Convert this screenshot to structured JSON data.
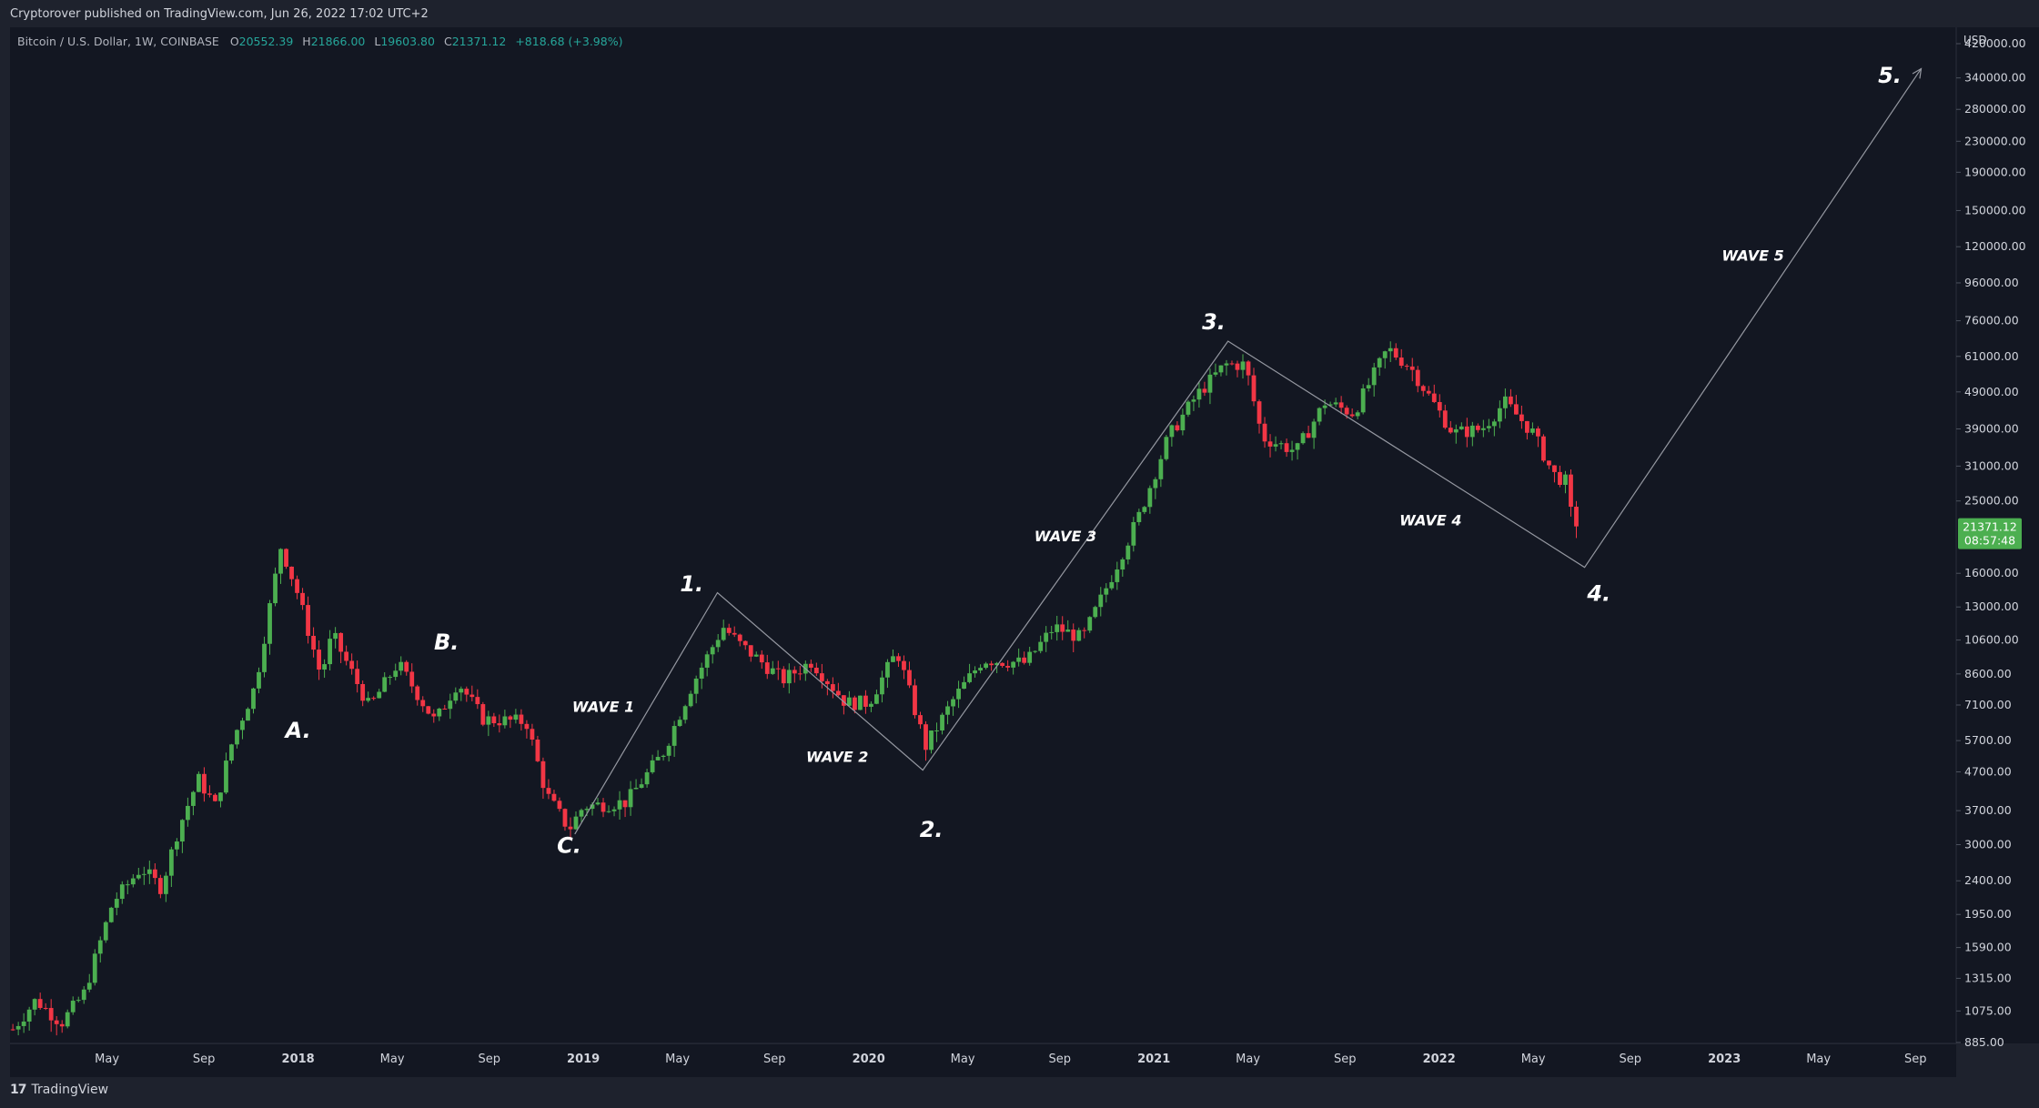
{
  "header": {
    "published_text": "Cryptorover published on TradingView.com, Jun 26, 2022 17:02 UTC+2"
  },
  "legend": {
    "symbol": "Bitcoin / U.S. Dollar, 1W, COINBASE",
    "open_label": "O",
    "open_value": "20552.39",
    "high_label": "H",
    "high_value": "21866.00",
    "low_label": "L",
    "low_value": "19603.80",
    "close_label": "C",
    "close_value": "21371.12",
    "change": "+818.68 (+3.98%)"
  },
  "price_axis": {
    "currency": "USD",
    "scale": "log",
    "ticks": [
      420000,
      340000,
      280000,
      230000,
      190000,
      150000,
      120000,
      96000,
      76000,
      61000,
      49000,
      39000,
      31000,
      25000,
      16000,
      13000,
      10600,
      8600,
      7100,
      5700,
      4700,
      3700,
      3000,
      2400,
      1950,
      1590,
      1315,
      1075,
      885
    ],
    "tick_labels": [
      "420000.00",
      "340000.00",
      "280000.00",
      "230000.00",
      "190000.00",
      "150000.00",
      "120000.00",
      "96000.00",
      "76000.00",
      "61000.00",
      "49000.00",
      "39000.00",
      "31000.00",
      "25000.00",
      "16000.00",
      "13000.00",
      "10600.00",
      "8600.00",
      "7100.00",
      "5700.00",
      "4700.00",
      "3700.00",
      "3000.00",
      "2400.00",
      "1950.00",
      "1590.00",
      "1315.00",
      "1075.00",
      "885.00"
    ],
    "last_price_label": "21371.12",
    "countdown_label": "08:57:48",
    "last_price": 21371.12
  },
  "time_axis": {
    "labels": [
      {
        "text": "May",
        "t": 2017.33,
        "bold": false
      },
      {
        "text": "Sep",
        "t": 2017.67,
        "bold": false
      },
      {
        "text": "2018",
        "t": 2018.0,
        "bold": true
      },
      {
        "text": "May",
        "t": 2018.33,
        "bold": false
      },
      {
        "text": "Sep",
        "t": 2018.67,
        "bold": false
      },
      {
        "text": "2019",
        "t": 2019.0,
        "bold": true
      },
      {
        "text": "May",
        "t": 2019.33,
        "bold": false
      },
      {
        "text": "Sep",
        "t": 2019.67,
        "bold": false
      },
      {
        "text": "2020",
        "t": 2020.0,
        "bold": true
      },
      {
        "text": "May",
        "t": 2020.33,
        "bold": false
      },
      {
        "text": "Sep",
        "t": 2020.67,
        "bold": false
      },
      {
        "text": "2021",
        "t": 2021.0,
        "bold": true
      },
      {
        "text": "May",
        "t": 2021.33,
        "bold": false
      },
      {
        "text": "Sep",
        "t": 2021.67,
        "bold": false
      },
      {
        "text": "2022",
        "t": 2022.0,
        "bold": true
      },
      {
        "text": "May",
        "t": 2022.33,
        "bold": false
      },
      {
        "text": "Sep",
        "t": 2022.67,
        "bold": false
      },
      {
        "text": "2023",
        "t": 2023.0,
        "bold": true
      },
      {
        "text": "May",
        "t": 2023.33,
        "bold": false
      },
      {
        "text": "Sep",
        "t": 2023.67,
        "bold": false
      }
    ]
  },
  "colors": {
    "up": "#26a69a",
    "down": "#ef5350",
    "up_candle": "#4caf50",
    "down_candle": "#f23645",
    "background": "#131722",
    "frame": "#1e222d",
    "text": "#d1d4dc",
    "drawing": "#9598a1",
    "price_tag": "#4caf50"
  },
  "footer": {
    "logo_mark": "17",
    "brand": "TradingView"
  },
  "chart_data": {
    "type": "candlestick",
    "symbol": "BTCUSD",
    "interval": "1W",
    "price_scale": "log",
    "ohlc_anchors": [
      {
        "t": 2017.0,
        "p": 960
      },
      {
        "t": 2017.08,
        "p": 1150
      },
      {
        "t": 2017.17,
        "p": 1000
      },
      {
        "t": 2017.25,
        "p": 1200
      },
      {
        "t": 2017.35,
        "p": 2100
      },
      {
        "t": 2017.45,
        "p": 2600
      },
      {
        "t": 2017.52,
        "p": 2300
      },
      {
        "t": 2017.58,
        "p": 3300
      },
      {
        "t": 2017.65,
        "p": 4500
      },
      {
        "t": 2017.71,
        "p": 3800
      },
      {
        "t": 2017.77,
        "p": 5700
      },
      {
        "t": 2017.85,
        "p": 8000
      },
      {
        "t": 2017.94,
        "p": 19000
      },
      {
        "t": 2018.0,
        "p": 14000
      },
      {
        "t": 2018.08,
        "p": 8500
      },
      {
        "t": 2018.12,
        "p": 11000
      },
      {
        "t": 2018.25,
        "p": 7000
      },
      {
        "t": 2018.35,
        "p": 9200
      },
      {
        "t": 2018.48,
        "p": 6400
      },
      {
        "t": 2018.56,
        "p": 8200
      },
      {
        "t": 2018.65,
        "p": 6500
      },
      {
        "t": 2018.8,
        "p": 6400
      },
      {
        "t": 2018.87,
        "p": 4100
      },
      {
        "t": 2018.95,
        "p": 3300
      },
      {
        "t": 2019.0,
        "p": 3800
      },
      {
        "t": 2019.15,
        "p": 3900
      },
      {
        "t": 2019.28,
        "p": 5300
      },
      {
        "t": 2019.38,
        "p": 8000
      },
      {
        "t": 2019.49,
        "p": 11500
      },
      {
        "t": 2019.55,
        "p": 10300
      },
      {
        "t": 2019.7,
        "p": 8300
      },
      {
        "t": 2019.8,
        "p": 9300
      },
      {
        "t": 2019.92,
        "p": 7200
      },
      {
        "t": 2020.0,
        "p": 7200
      },
      {
        "t": 2020.1,
        "p": 9900
      },
      {
        "t": 2020.2,
        "p": 5500
      },
      {
        "t": 2020.3,
        "p": 7400
      },
      {
        "t": 2020.4,
        "p": 9400
      },
      {
        "t": 2020.55,
        "p": 9200
      },
      {
        "t": 2020.65,
        "p": 11500
      },
      {
        "t": 2020.75,
        "p": 10700
      },
      {
        "t": 2020.85,
        "p": 15600
      },
      {
        "t": 2020.95,
        "p": 23000
      },
      {
        "t": 2021.05,
        "p": 37000
      },
      {
        "t": 2021.15,
        "p": 48000
      },
      {
        "t": 2021.25,
        "p": 58000
      },
      {
        "t": 2021.32,
        "p": 58000
      },
      {
        "t": 2021.38,
        "p": 37000
      },
      {
        "t": 2021.5,
        "p": 34000
      },
      {
        "t": 2021.6,
        "p": 46000
      },
      {
        "t": 2021.7,
        "p": 43000
      },
      {
        "t": 2021.82,
        "p": 64000
      },
      {
        "t": 2021.9,
        "p": 57000
      },
      {
        "t": 2021.97,
        "p": 47000
      },
      {
        "t": 2022.05,
        "p": 38000
      },
      {
        "t": 2022.15,
        "p": 39000
      },
      {
        "t": 2022.23,
        "p": 46000
      },
      {
        "t": 2022.33,
        "p": 38000
      },
      {
        "t": 2022.4,
        "p": 29500
      },
      {
        "t": 2022.45,
        "p": 28000
      },
      {
        "t": 2022.47,
        "p": 20500
      },
      {
        "t": 2022.49,
        "p": 21371
      }
    ],
    "annotations": [
      {
        "type": "label",
        "text": "A.",
        "t": 2018.0,
        "p": 5800
      },
      {
        "type": "label",
        "text": "B.",
        "t": 2018.52,
        "p": 10000
      },
      {
        "type": "label",
        "text": "C.",
        "t": 2018.95,
        "p": 2850
      },
      {
        "type": "label",
        "text": "1.",
        "t": 2019.38,
        "p": 14300
      },
      {
        "type": "label",
        "text": "2.",
        "t": 2020.22,
        "p": 3150
      },
      {
        "type": "label",
        "text": "3.",
        "t": 2021.21,
        "p": 72000
      },
      {
        "type": "label",
        "text": "4.",
        "t": 2022.56,
        "p": 13500
      },
      {
        "type": "label",
        "text": "5.",
        "t": 2023.58,
        "p": 330000
      },
      {
        "type": "label",
        "text": "WAVE 1",
        "t": 2019.07,
        "p": 6800
      },
      {
        "type": "label",
        "text": "WAVE 2",
        "t": 2019.89,
        "p": 5000
      },
      {
        "type": "label",
        "text": "WAVE 3",
        "t": 2020.69,
        "p": 19500
      },
      {
        "type": "label",
        "text": "WAVE 4",
        "t": 2021.97,
        "p": 21500
      },
      {
        "type": "label",
        "text": "WAVE 5",
        "t": 2023.1,
        "p": 110000
      }
    ],
    "wave_path": [
      {
        "t": 2018.97,
        "p": 3200
      },
      {
        "t": 2019.47,
        "p": 14200
      },
      {
        "t": 2020.19,
        "p": 4750
      },
      {
        "t": 2021.26,
        "p": 67000
      },
      {
        "t": 2022.51,
        "p": 16600
      },
      {
        "t": 2023.69,
        "p": 360000
      }
    ],
    "xlim": [
      2016.99,
      2023.8
    ],
    "ylim": [
      860,
      510000
    ]
  }
}
